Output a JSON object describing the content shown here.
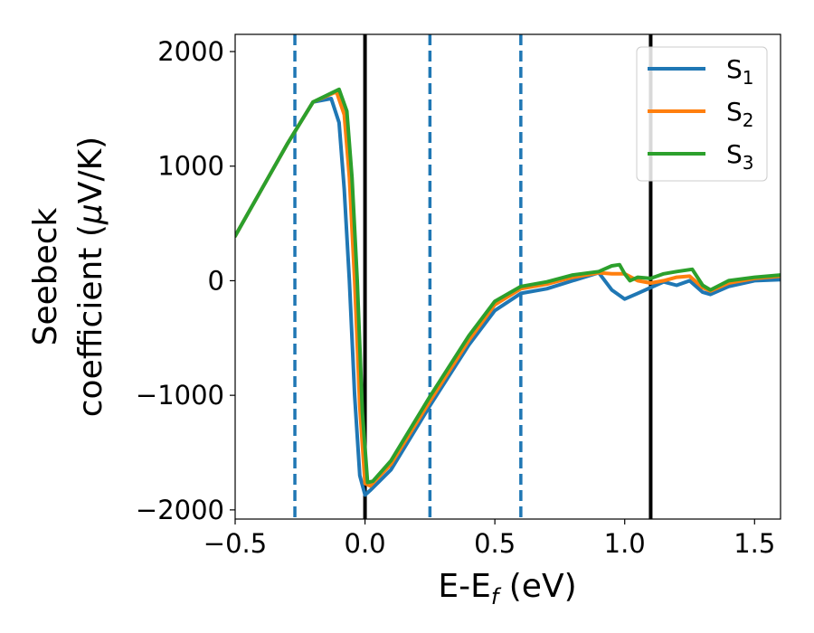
{
  "chart_data": {
    "type": "line",
    "xlabel": {
      "main": "E-E",
      "sub": "f",
      "unit": " (eV)"
    },
    "ylabel": {
      "line1": "Seebeck",
      "line2_prefix": "coefficient  (",
      "line2_mu": "μ",
      "line2_suffix": "V/K)"
    },
    "xlim": [
      -0.5,
      1.6
    ],
    "ylim": [
      -2080,
      2150
    ],
    "xticks": [
      -0.5,
      0.0,
      0.5,
      1.0,
      1.5
    ],
    "xtick_labels": [
      "−0.5",
      "0.0",
      "0.5",
      "1.0",
      "1.5"
    ],
    "yticks": [
      -2000,
      -1000,
      0,
      1000,
      2000
    ],
    "ytick_labels": [
      "−2000",
      "−1000",
      "0",
      "1000",
      "2000"
    ],
    "grid": false,
    "legend_position": "top-right",
    "vertical_lines": [
      {
        "x": -0.27,
        "style": "dashed",
        "color": "#1f77b4"
      },
      {
        "x": 0.0,
        "style": "solid",
        "color": "#000000"
      },
      {
        "x": 0.25,
        "style": "dashed",
        "color": "#1f77b4"
      },
      {
        "x": 0.6,
        "style": "dashed",
        "color": "#1f77b4"
      },
      {
        "x": 1.1,
        "style": "solid",
        "color": "#000000"
      }
    ],
    "series": [
      {
        "name": "S",
        "sub": "1",
        "color": "#1f77b4",
        "points": [
          [
            -0.5,
            390
          ],
          [
            -0.4,
            790
          ],
          [
            -0.3,
            1190
          ],
          [
            -0.2,
            1560
          ],
          [
            -0.13,
            1590
          ],
          [
            -0.1,
            1380
          ],
          [
            -0.08,
            800
          ],
          [
            -0.06,
            0
          ],
          [
            -0.04,
            -1000
          ],
          [
            -0.02,
            -1700
          ],
          [
            0.0,
            -1870
          ],
          [
            0.02,
            -1830
          ],
          [
            0.1,
            -1650
          ],
          [
            0.25,
            -1090
          ],
          [
            0.4,
            -560
          ],
          [
            0.5,
            -260
          ],
          [
            0.6,
            -110
          ],
          [
            0.7,
            -70
          ],
          [
            0.8,
            0
          ],
          [
            0.9,
            70
          ],
          [
            0.95,
            -80
          ],
          [
            1.0,
            -160
          ],
          [
            1.05,
            -110
          ],
          [
            1.1,
            -60
          ],
          [
            1.15,
            -10
          ],
          [
            1.2,
            -40
          ],
          [
            1.25,
            0
          ],
          [
            1.3,
            -100
          ],
          [
            1.33,
            -120
          ],
          [
            1.4,
            -50
          ],
          [
            1.5,
            0
          ],
          [
            1.6,
            10
          ]
        ]
      },
      {
        "name": "S",
        "sub": "2",
        "color": "#ff7f0e",
        "points": [
          [
            -0.5,
            390
          ],
          [
            -0.4,
            790
          ],
          [
            -0.3,
            1190
          ],
          [
            -0.2,
            1560
          ],
          [
            -0.11,
            1650
          ],
          [
            -0.08,
            1450
          ],
          [
            -0.06,
            900
          ],
          [
            -0.04,
            0
          ],
          [
            -0.02,
            -1100
          ],
          [
            0.0,
            -1770
          ],
          [
            0.02,
            -1790
          ],
          [
            0.1,
            -1600
          ],
          [
            0.25,
            -1050
          ],
          [
            0.4,
            -520
          ],
          [
            0.5,
            -210
          ],
          [
            0.6,
            -70
          ],
          [
            0.7,
            -30
          ],
          [
            0.8,
            30
          ],
          [
            0.9,
            70
          ],
          [
            0.95,
            60
          ],
          [
            1.0,
            60
          ],
          [
            1.05,
            0
          ],
          [
            1.1,
            -20
          ],
          [
            1.15,
            0
          ],
          [
            1.2,
            30
          ],
          [
            1.25,
            40
          ],
          [
            1.3,
            -60
          ],
          [
            1.33,
            -90
          ],
          [
            1.4,
            -20
          ],
          [
            1.5,
            20
          ],
          [
            1.6,
            40
          ]
        ]
      },
      {
        "name": "S",
        "sub": "3",
        "color": "#2ca02c",
        "points": [
          [
            -0.5,
            390
          ],
          [
            -0.4,
            790
          ],
          [
            -0.3,
            1190
          ],
          [
            -0.2,
            1560
          ],
          [
            -0.1,
            1670
          ],
          [
            -0.07,
            1480
          ],
          [
            -0.05,
            900
          ],
          [
            -0.03,
            0
          ],
          [
            -0.01,
            -1150
          ],
          [
            0.01,
            -1760
          ],
          [
            0.03,
            -1750
          ],
          [
            0.1,
            -1570
          ],
          [
            0.25,
            -1010
          ],
          [
            0.4,
            -480
          ],
          [
            0.5,
            -180
          ],
          [
            0.6,
            -50
          ],
          [
            0.7,
            -10
          ],
          [
            0.8,
            50
          ],
          [
            0.9,
            80
          ],
          [
            0.95,
            130
          ],
          [
            0.98,
            140
          ],
          [
            1.0,
            60
          ],
          [
            1.02,
            0
          ],
          [
            1.05,
            30
          ],
          [
            1.1,
            20
          ],
          [
            1.15,
            60
          ],
          [
            1.2,
            80
          ],
          [
            1.26,
            100
          ],
          [
            1.3,
            -40
          ],
          [
            1.33,
            -80
          ],
          [
            1.4,
            0
          ],
          [
            1.5,
            30
          ],
          [
            1.6,
            50
          ]
        ]
      }
    ]
  }
}
